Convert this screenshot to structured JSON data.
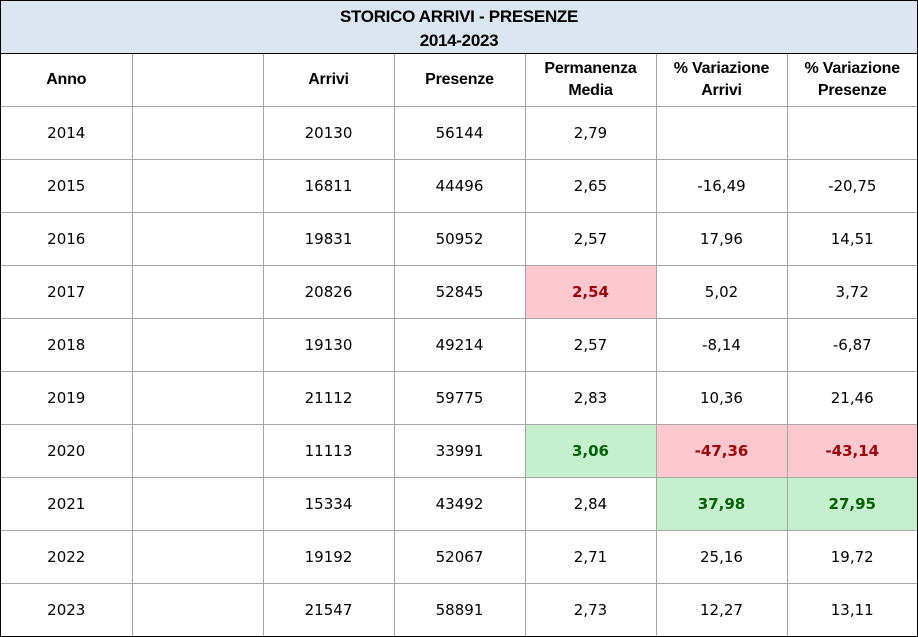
{
  "title": {
    "line1": "STORICO ARRIVI - PRESENZE",
    "line2": "2014-2023"
  },
  "headers": {
    "anno": "Anno",
    "blank": "",
    "arrivi": "Arrivi",
    "presenze": "Presenze",
    "permanenza_line1": "Permanenza",
    "permanenza_line2": "Media",
    "var_arrivi_line1": "% Variazione",
    "var_arrivi_line2": "Arrivi",
    "var_presenze_line1": "% Variazione",
    "var_presenze_line2": "Presenze"
  },
  "rows": [
    {
      "anno": "2014",
      "arrivi": "20130",
      "presenze": "56144",
      "permanenza": "2,79",
      "var_arrivi": "",
      "var_presenze": ""
    },
    {
      "anno": "2015",
      "arrivi": "16811",
      "presenze": "44496",
      "permanenza": "2,65",
      "var_arrivi": "-16,49",
      "var_presenze": "-20,75"
    },
    {
      "anno": "2016",
      "arrivi": "19831",
      "presenze": "50952",
      "permanenza": "2,57",
      "var_arrivi": "17,96",
      "var_presenze": "14,51"
    },
    {
      "anno": "2017",
      "arrivi": "20826",
      "presenze": "52845",
      "permanenza": "2,54",
      "var_arrivi": "5,02",
      "var_presenze": "3,72"
    },
    {
      "anno": "2018",
      "arrivi": "19130",
      "presenze": "49214",
      "permanenza": "2,57",
      "var_arrivi": "-8,14",
      "var_presenze": "-6,87"
    },
    {
      "anno": "2019",
      "arrivi": "21112",
      "presenze": "59775",
      "permanenza": "2,83",
      "var_arrivi": "10,36",
      "var_presenze": "21,46"
    },
    {
      "anno": "2020",
      "arrivi": "11113",
      "presenze": "33991",
      "permanenza": "3,06",
      "var_arrivi": "-47,36",
      "var_presenze": "-43,14"
    },
    {
      "anno": "2021",
      "arrivi": "15334",
      "presenze": "43492",
      "permanenza": "2,84",
      "var_arrivi": "37,98",
      "var_presenze": "27,95"
    },
    {
      "anno": "2022",
      "arrivi": "19192",
      "presenze": "52067",
      "permanenza": "2,71",
      "var_arrivi": "25,16",
      "var_presenze": "19,72"
    },
    {
      "anno": "2023",
      "arrivi": "21547",
      "presenze": "58891",
      "permanenza": "2,73",
      "var_arrivi": "12,27",
      "var_presenze": "13,11"
    }
  ],
  "highlight_colors": {
    "min_fill": "#ffc7ce",
    "min_text": "#9c0006",
    "max_fill": "#c6efce",
    "max_text": "#006100",
    "title_fill": "#dce6f1"
  }
}
